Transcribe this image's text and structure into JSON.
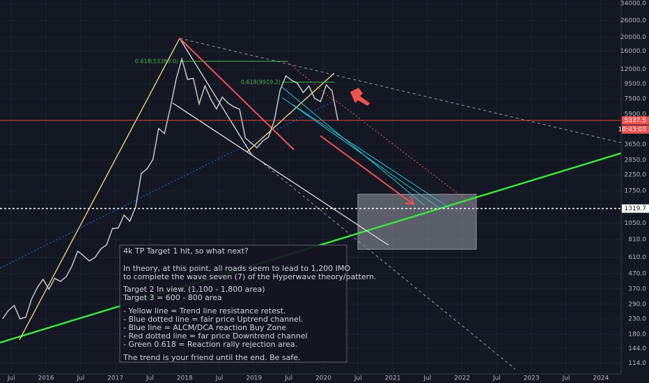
{
  "chart_data": {
    "type": "line",
    "color": "#c9c9c9",
    "x": [
      "2015-05",
      "2015-06",
      "2015-07",
      "2015-08",
      "2015-09",
      "2015-10",
      "2015-11",
      "2015-12",
      "2016-01",
      "2016-02",
      "2016-03",
      "2016-04",
      "2016-05",
      "2016-06",
      "2016-07",
      "2016-08",
      "2016-09",
      "2016-10",
      "2016-11",
      "2016-12",
      "2017-01",
      "2017-02",
      "2017-03",
      "2017-04",
      "2017-05",
      "2017-06",
      "2017-07",
      "2017-08",
      "2017-09",
      "2017-10",
      "2017-11",
      "2017-12",
      "2018-01",
      "2018-02",
      "2018-03",
      "2018-04",
      "2018-05",
      "2018-06",
      "2018-07",
      "2018-08",
      "2018-09",
      "2018-10",
      "2018-11",
      "2018-12",
      "2019-01",
      "2019-02",
      "2019-03",
      "2019-04",
      "2019-05",
      "2019-06",
      "2019-07",
      "2019-08",
      "2019-09",
      "2019-10",
      "2019-11",
      "2019-12",
      "2020-01",
      "2020-02",
      "2020-03"
    ],
    "values": [
      230,
      263,
      284,
      230,
      236,
      314,
      377,
      430,
      368,
      437,
      416,
      448,
      531,
      673,
      624,
      575,
      609,
      698,
      742,
      963,
      970,
      1190,
      1080,
      1348,
      2300,
      2480,
      2875,
      4700,
      4340,
      6470,
      10200,
      14150,
      10220,
      10400,
      6930,
      9240,
      7500,
      6400,
      7730,
      7030,
      6630,
      6370,
      4040,
      3740,
      3460,
      3850,
      4100,
      5320,
      8570,
      10820,
      10080,
      9630,
      8290,
      9200,
      7570,
      7190,
      9350,
      8540,
      5337.5
    ],
    "log_scale": true,
    "ylim": [
      96,
      36000
    ],
    "yticks": [
      {
        "value": 34000,
        "label": "34000.0"
      },
      {
        "value": 26000,
        "label": "26000.0"
      },
      {
        "value": 20000,
        "label": "20000.0"
      },
      {
        "value": 16000,
        "label": "16000.0"
      },
      {
        "value": 12000,
        "label": "12000.0"
      },
      {
        "value": 9500,
        "label": "9500.0"
      },
      {
        "value": 7500,
        "label": "7500.0"
      },
      {
        "value": 5900,
        "label": "5900.0"
      },
      {
        "value": 3650,
        "label": "3650.0"
      },
      {
        "value": 2850,
        "label": "2850.0"
      },
      {
        "value": 2250,
        "label": "2250.0"
      },
      {
        "value": 1750,
        "label": "1750.0"
      },
      {
        "value": 1050,
        "label": "1050.0"
      },
      {
        "value": 810,
        "label": "810.0"
      },
      {
        "value": 610,
        "label": "610.0"
      },
      {
        "value": 470,
        "label": "470.0"
      },
      {
        "value": 370,
        "label": "370.0"
      },
      {
        "value": 290,
        "label": "290.0"
      },
      {
        "value": 230,
        "label": "230.0"
      },
      {
        "value": 180,
        "label": "180.0"
      },
      {
        "value": 144,
        "label": "144.0"
      },
      {
        "value": 114,
        "label": "114.0"
      }
    ],
    "xticks": [
      {
        "value": "2015-07",
        "label": "Jul"
      },
      {
        "value": "2016-01",
        "label": "2016"
      },
      {
        "value": "2016-07",
        "label": "Jul"
      },
      {
        "value": "2017-01",
        "label": "2017"
      },
      {
        "value": "2017-07",
        "label": "Jul"
      },
      {
        "value": "2018-01",
        "label": "2018"
      },
      {
        "value": "2018-07",
        "label": "Jul"
      },
      {
        "value": "2019-01",
        "label": "2019"
      },
      {
        "value": "2019-07",
        "label": "Jul"
      },
      {
        "value": "2020-01",
        "label": "2020"
      },
      {
        "value": "2020-07",
        "label": "Jul"
      },
      {
        "value": "2021-01",
        "label": "2021"
      },
      {
        "value": "2021-07",
        "label": "Jul"
      },
      {
        "value": "2022-01",
        "label": "2022"
      },
      {
        "value": "2022-07",
        "label": "Jul"
      },
      {
        "value": "2023-01",
        "label": "2023"
      },
      {
        "value": "2023-07",
        "label": "Jul"
      },
      {
        "value": "2024-01",
        "label": "2024"
      }
    ],
    "grid": true,
    "price_line": {
      "value": 5337.5,
      "label": "5337.5",
      "countdown": "10:43:03",
      "color": "#ef5350"
    },
    "target_line": {
      "value": 1319.7,
      "label": "1319.7",
      "color": "#ffffff"
    },
    "fib_labels": [
      "0.618(13383.0)",
      "0.618(9919.2)"
    ],
    "note": [
      "4k TP Target 1 hit, so what next?",
      "In theory, at this point, all roads seem to lead to 1,200 IMO",
      "to complete the wave seven (7) of the Hyperwave theory/pattern.",
      "Target 2 In view. (1,100 - 1,800 area)",
      "Target 3 = 600 - 800 area",
      "- Yellow line = Trend line resistance retest.",
      "- Blue dotted line = fair price Uptrend channel.",
      "- Blue line = ALCM/DCA reaction Buy Zone",
      "- Red dotted line = far price Downtrend channel",
      "- Green 0.618 = Reaction rally rejection area.",
      "The trend is your friend until the end. Be safe."
    ]
  }
}
